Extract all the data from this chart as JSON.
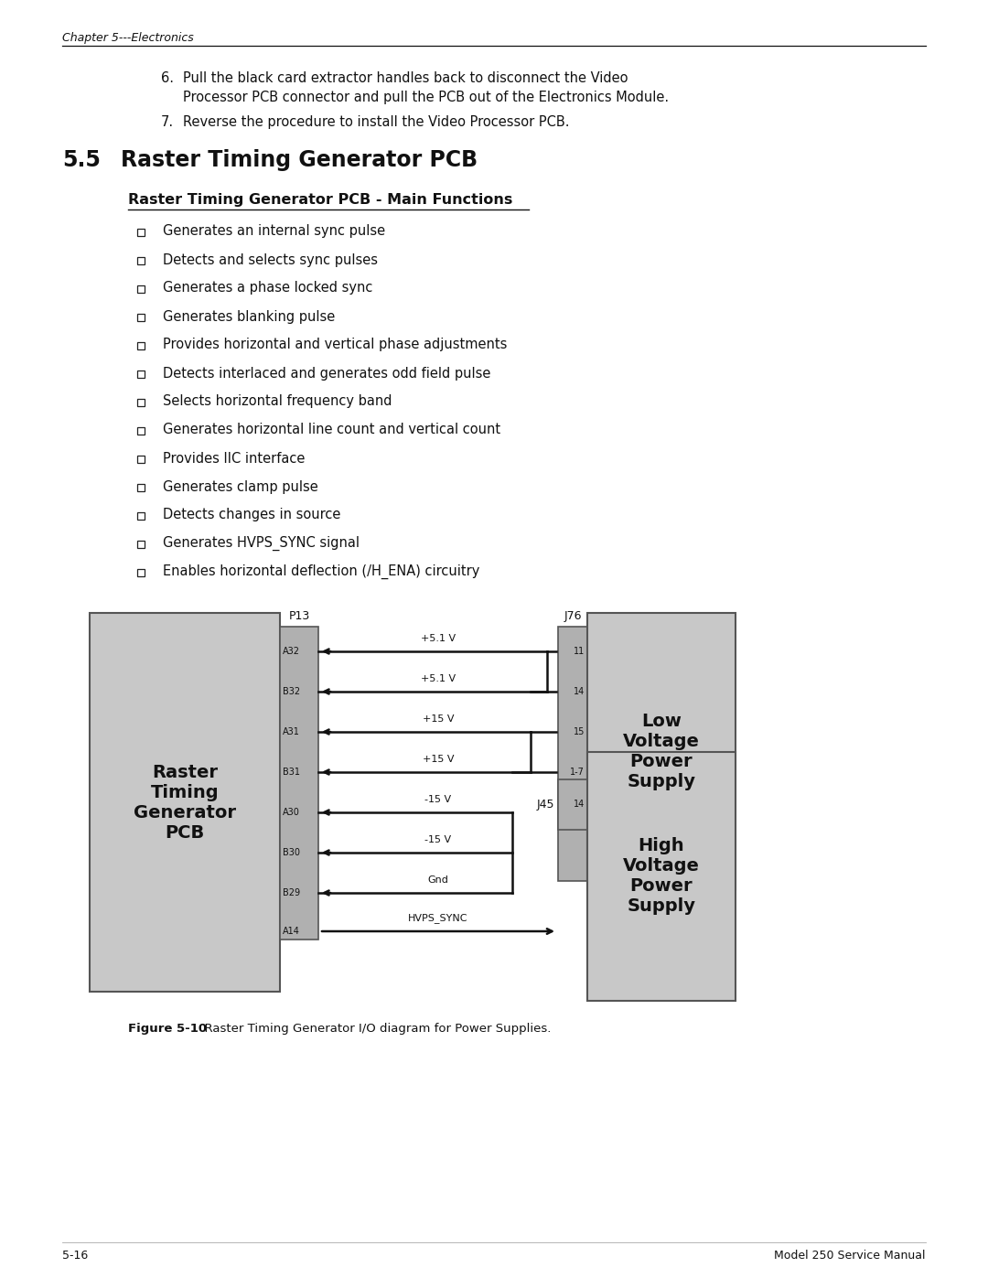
{
  "page_bg": "#ffffff",
  "header_text": "Chapter 5---Electronics",
  "header_font_size": 9,
  "footer_left": "5-16",
  "footer_right": "Model 250 Service Manual",
  "footer_font_size": 9,
  "section_num": "5.5",
  "section_title": "Raster Timing Generator PCB",
  "section_title_font_size": 17,
  "subsection_title": "Raster Timing Generator PCB - Main Functions",
  "subsection_font_size": 11.5,
  "bullet_font_size": 10.5,
  "bullets": [
    "Generates an internal sync pulse",
    "Detects and selects sync pulses",
    "Generates a phase locked sync",
    "Generates blanking pulse",
    "Provides horizontal and vertical phase adjustments",
    "Detects interlaced and generates odd field pulse",
    "Selects horizontal frequency band",
    "Generates horizontal line count and vertical count",
    "Provides IIC interface",
    "Generates clamp pulse",
    "Detects changes in source",
    "Generates HVPS_SYNC signal",
    "Enables horizontal deflection (/H_ENA) circuitry"
  ],
  "intro_6a": "Pull the black card extractor handles back to disconnect the Video",
  "intro_6b": "Processor PCB connector and pull the PCB out of the Electronics Module.",
  "intro_7": "Reverse the procedure to install the Video Processor PCB.",
  "figure_caption_bold": "Figure 5-10",
  "figure_caption_normal": "  Raster Timing Generator I/O diagram for Power Supplies.",
  "left_box_text": "Raster\nTiming\nGenerator\nPCB",
  "right_top_box_text": "Low\nVoltage\nPower\nSupply",
  "right_bot_box_text": "High\nVoltage\nPower\nSupply",
  "box_fill": "#c8c8c8",
  "conn_fill": "#b0b0b0",
  "left_pins": [
    "A32",
    "B32",
    "A31",
    "B31",
    "A30",
    "B30",
    "B29"
  ],
  "signal_labels": [
    "+5.1 V",
    "+5.1 V",
    "+15 V",
    "+15 V",
    "-15 V",
    "-15 V",
    "Gnd"
  ],
  "right_top_pins": [
    "11",
    "14",
    "15",
    "1-7"
  ],
  "a14_signal": "HVPS_SYNC",
  "j45_pin": "14",
  "line_color": "#111111",
  "text_color": "#111111"
}
